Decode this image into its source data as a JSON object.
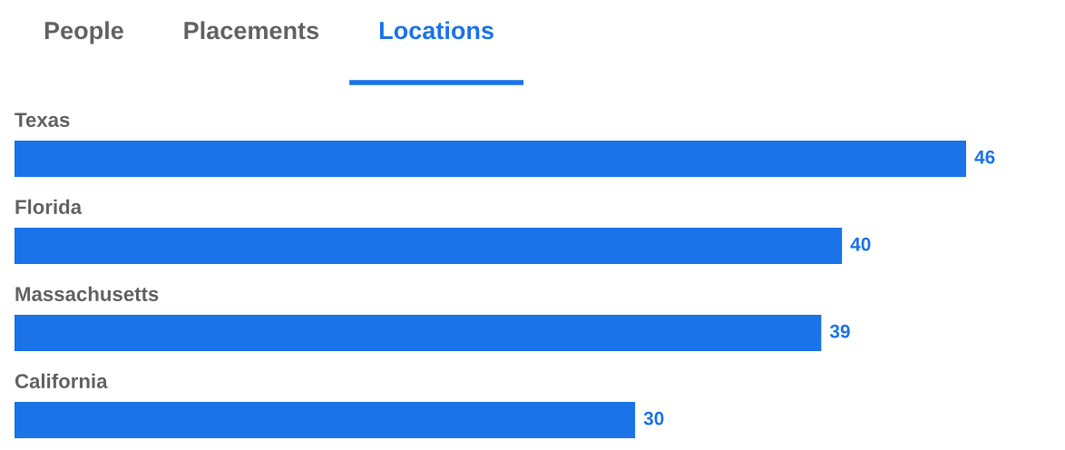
{
  "chart_data": {
    "type": "bar",
    "orientation": "horizontal",
    "title": "Locations",
    "annotations": [
      "People",
      "Placements"
    ],
    "categories": [
      "Texas",
      "Florida",
      "Massachusetts",
      "California"
    ],
    "values": [
      46,
      40,
      39,
      30
    ],
    "color": "#1a73e8",
    "data_labels": true,
    "tick_labels": "y"
  }
}
